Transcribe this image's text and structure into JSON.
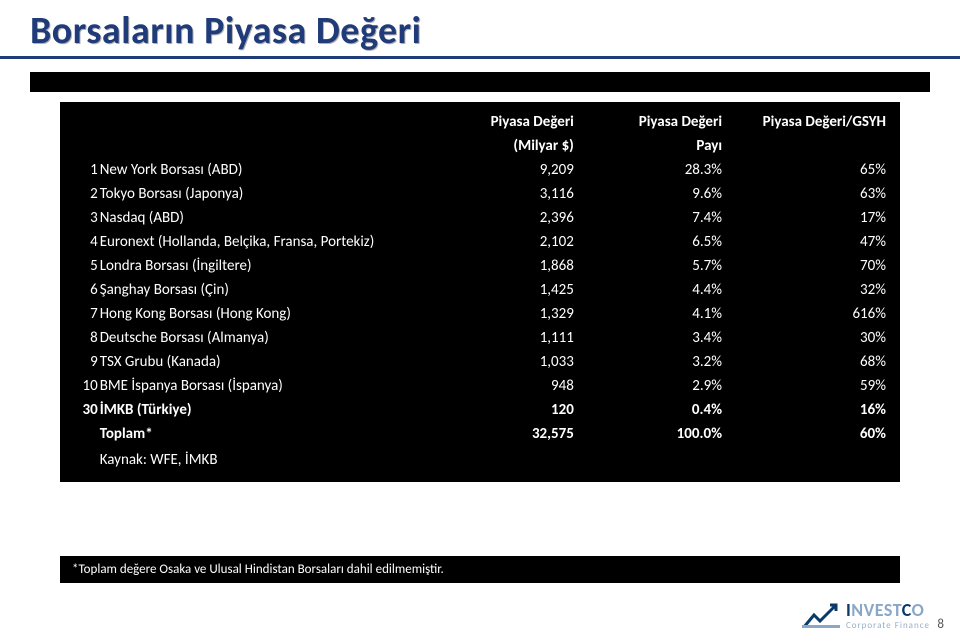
{
  "title": "Borsaların Piyasa Değeri",
  "colors": {
    "title": "#1f3b7a",
    "underline": "#1f3b7a",
    "table_bg": "#000000",
    "table_fg": "#ffffff",
    "logo_dark": "#0a3a6a",
    "logo_light": "#8aa7c7"
  },
  "table": {
    "header_top": {
      "value": "Piyasa Değeri",
      "share": "Piyasa Değeri",
      "gsyh": "Piyasa Değeri/GSYH"
    },
    "header_sub": {
      "value": "(Milyar $)",
      "share": "Payı"
    },
    "rows": [
      {
        "rank": "1",
        "name": "New York Borsası (ABD)",
        "value": "9,209",
        "share": "28.3%",
        "gsyh": "65%"
      },
      {
        "rank": "2",
        "name": "Tokyo Borsası (Japonya)",
        "value": "3,116",
        "share": "9.6%",
        "gsyh": "63%"
      },
      {
        "rank": "3",
        "name": "Nasdaq (ABD)",
        "value": "2,396",
        "share": "7.4%",
        "gsyh": "17%"
      },
      {
        "rank": "4",
        "name": "Euronext (Hollanda, Belçika, Fransa, Portekiz)",
        "value": "2,102",
        "share": "6.5%",
        "gsyh": "47%"
      },
      {
        "rank": "5",
        "name": "Londra Borsası (İngiltere)",
        "value": "1,868",
        "share": "5.7%",
        "gsyh": "70%"
      },
      {
        "rank": "6",
        "name": "Şanghay Borsası (Çin)",
        "value": "1,425",
        "share": "4.4%",
        "gsyh": "32%"
      },
      {
        "rank": "7",
        "name": "Hong Kong Borsası (Hong Kong)",
        "value": "1,329",
        "share": "4.1%",
        "gsyh": "616%"
      },
      {
        "rank": "8",
        "name": "Deutsche Borsası (Almanya)",
        "value": "1,111",
        "share": "3.4%",
        "gsyh": "30%"
      },
      {
        "rank": "9",
        "name": "TSX Grubu (Kanada)",
        "value": "1,033",
        "share": "3.2%",
        "gsyh": "68%"
      },
      {
        "rank": "10",
        "name": "BME İspanya Borsası (İspanya)",
        "value": "948",
        "share": "2.9%",
        "gsyh": "59%"
      }
    ],
    "highlight": {
      "rank": "30",
      "name": "İMKB (Türkiye)",
      "value": "120",
      "share": "0.4%",
      "gsyh": "16%"
    },
    "total": {
      "name": "Toplam*",
      "value": "32,575",
      "share": "100.0%",
      "gsyh": "60%"
    },
    "source": "Kaynak: WFE, İMKB"
  },
  "footnote": "*Toplam değere Osaka ve Ulusal Hindistan Borsaları dahil edilmemiştir.",
  "logo": {
    "main1": "I",
    "main2": "NVEST",
    "main3": "C",
    "main4": "O",
    "sub": "Corporate Finance"
  },
  "page_number": "8"
}
